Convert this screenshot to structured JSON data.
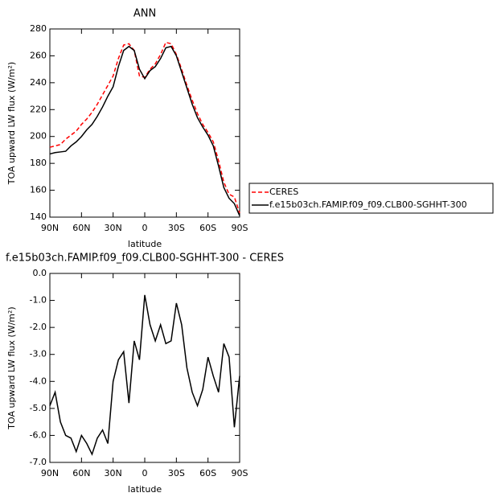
{
  "chart_data": [
    {
      "type": "line",
      "title": "ANN",
      "x_label": "latitude",
      "y_label": "TOA upward LW flux (W/m²)",
      "x": [
        90,
        85,
        80,
        75,
        70,
        65,
        60,
        55,
        50,
        45,
        40,
        35,
        30,
        25,
        20,
        15,
        10,
        5,
        0,
        -5,
        -10,
        -15,
        -20,
        -25,
        -30,
        -35,
        -40,
        -45,
        -50,
        -55,
        -60,
        -65,
        -70,
        -75,
        -80,
        -85,
        -90
      ],
      "series": [
        {
          "name": "CERES",
          "color": "#ff0000",
          "style": "dashed",
          "values": [
            192,
            193,
            194,
            198,
            201,
            204,
            209,
            213,
            218,
            224,
            231,
            238,
            245,
            258,
            268,
            269,
            264,
            245,
            244,
            250,
            254,
            261,
            270,
            269,
            261,
            250,
            238,
            227,
            217,
            209,
            203,
            196,
            182,
            166,
            157,
            155,
            143
          ]
        },
        {
          "name": "f.e15b03ch.FAMIP.f09_f09.CLB00-SGHHT-300",
          "color": "#000000",
          "style": "solid",
          "values": [
            187,
            188,
            188.5,
            189,
            193,
            196,
            200,
            205,
            209,
            215,
            222,
            230,
            237,
            252,
            264,
            267,
            264,
            250,
            243,
            249,
            252,
            258,
            266,
            267,
            260,
            248,
            236,
            224,
            214,
            207,
            201,
            193,
            178,
            162,
            154,
            150,
            141
          ]
        }
      ],
      "xlim": [
        90,
        -90
      ],
      "xticks": [
        {
          "value": 90,
          "label": "90N"
        },
        {
          "value": 60,
          "label": "60N"
        },
        {
          "value": 30,
          "label": "30N"
        },
        0,
        {
          "value": -30,
          "label": "30S"
        },
        {
          "value": -60,
          "label": "60S"
        },
        {
          "value": -90,
          "label": "90S"
        }
      ],
      "ylim": [
        140,
        280
      ],
      "yticks": [
        140,
        160,
        180,
        200,
        220,
        240,
        260,
        280
      ],
      "legend": "outside-right"
    },
    {
      "type": "line",
      "title": "f.e15b03ch.FAMIP.f09_f09.CLB00-SGHHT-300 - CERES",
      "x_label": "latitude",
      "y_label": "TOA upward LW flux (W/m²)",
      "x": [
        90,
        85,
        80,
        75,
        70,
        65,
        60,
        55,
        50,
        45,
        40,
        35,
        30,
        25,
        20,
        15,
        10,
        5,
        0,
        -5,
        -10,
        -15,
        -20,
        -25,
        -30,
        -35,
        -40,
        -45,
        -50,
        -55,
        -60,
        -65,
        -70,
        -75,
        -80,
        -85,
        -90
      ],
      "values": [
        -4.9,
        -4.4,
        -5.5,
        -6.0,
        -6.1,
        -6.6,
        -6.0,
        -6.3,
        -6.7,
        -6.1,
        -5.8,
        -6.3,
        -4.0,
        -3.2,
        -2.9,
        -4.8,
        -2.5,
        -3.2,
        -0.8,
        -1.9,
        -2.5,
        -1.9,
        -2.6,
        -2.5,
        -1.1,
        -1.9,
        -3.5,
        -4.4,
        -4.9,
        -4.3,
        -3.1,
        -3.8,
        -4.4,
        -2.6,
        -3.1,
        -5.7,
        -3.8
      ],
      "color": "#000000",
      "xlim": [
        90,
        -90
      ],
      "xticks": [
        {
          "value": 90,
          "label": "90N"
        },
        {
          "value": 60,
          "label": "60N"
        },
        {
          "value": 30,
          "label": "30N"
        },
        0,
        {
          "value": -30,
          "label": "30S"
        },
        {
          "value": -60,
          "label": "60S"
        },
        {
          "value": -90,
          "label": "90S"
        }
      ],
      "ylim": [
        -7,
        0
      ],
      "yticks": [
        {
          "value": -7,
          "label": "-7.0"
        },
        {
          "value": -6,
          "label": "-6.0"
        },
        {
          "value": -5,
          "label": "-5.0"
        },
        {
          "value": -4,
          "label": "-4.0"
        },
        {
          "value": -3,
          "label": "-3.0"
        },
        {
          "value": -2,
          "label": "-2.0"
        },
        {
          "value": -1,
          "label": "-1.0"
        },
        {
          "value": 0,
          "label": "0.0"
        }
      ]
    }
  ]
}
